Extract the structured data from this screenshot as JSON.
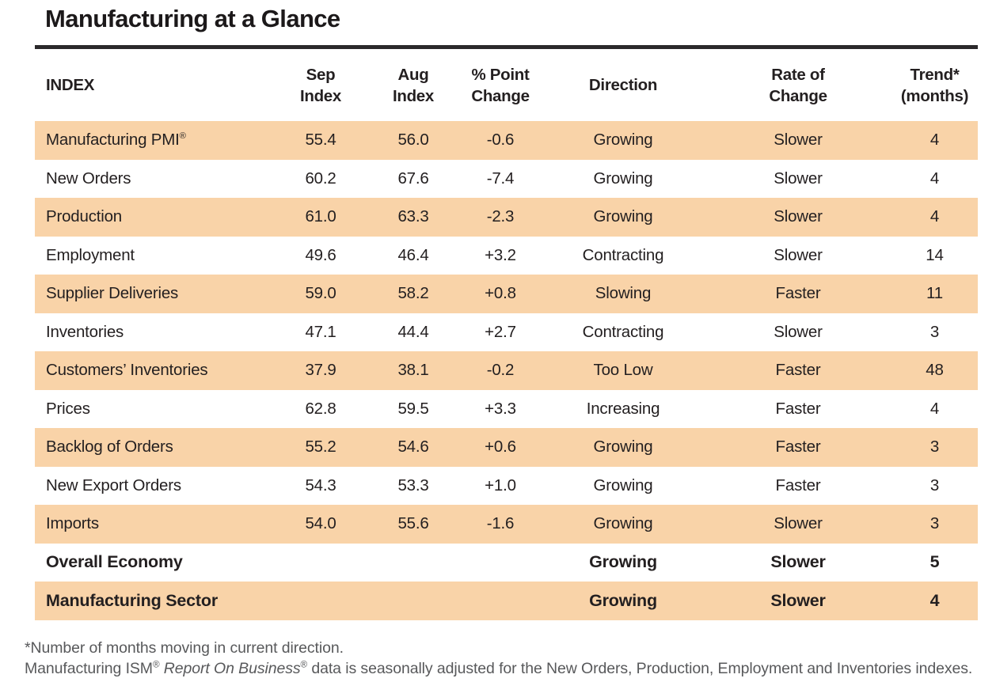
{
  "colors": {
    "highlight_row": "#F9D3A8",
    "text": "#231F20",
    "footnote_text": "#58595B",
    "title_rule": "#2B292B"
  },
  "chart_data": {
    "type": "table",
    "title": "Manufacturing at a Glance",
    "columns": [
      "INDEX",
      "Sep Index",
      "Aug Index",
      "% Point Change",
      "Direction",
      "Rate of Change",
      "Trend* (months)"
    ],
    "header_lines": [
      [
        "INDEX"
      ],
      [
        "Sep",
        "Index"
      ],
      [
        "Aug",
        "Index"
      ],
      [
        "% Point",
        "Change"
      ],
      [
        "Direction"
      ],
      [
        "Rate of",
        "Change"
      ],
      [
        "Trend*",
        "(months)"
      ]
    ],
    "rows": [
      {
        "name": "Manufacturing PMI",
        "name_sup": "®",
        "sep": "55.4",
        "aug": "56.0",
        "change": "-0.6",
        "direction": "Growing",
        "rate": "Slower",
        "trend": "4",
        "highlight": true,
        "bold": false
      },
      {
        "name": "New Orders",
        "sep": "60.2",
        "aug": "67.6",
        "change": "-7.4",
        "direction": "Growing",
        "rate": "Slower",
        "trend": "4",
        "highlight": false,
        "bold": false
      },
      {
        "name": "Production",
        "sep": "61.0",
        "aug": "63.3",
        "change": "-2.3",
        "direction": "Growing",
        "rate": "Slower",
        "trend": "4",
        "highlight": true,
        "bold": false
      },
      {
        "name": "Employment",
        "sep": "49.6",
        "aug": "46.4",
        "change": "+3.2",
        "direction": "Contracting",
        "rate": "Slower",
        "trend": "14",
        "highlight": false,
        "bold": false
      },
      {
        "name": "Supplier Deliveries",
        "sep": "59.0",
        "aug": "58.2",
        "change": "+0.8",
        "direction": "Slowing",
        "rate": "Faster",
        "trend": "11",
        "highlight": true,
        "bold": false
      },
      {
        "name": "Inventories",
        "sep": "47.1",
        "aug": "44.4",
        "change": "+2.7",
        "direction": "Contracting",
        "rate": "Slower",
        "trend": "3",
        "highlight": false,
        "bold": false
      },
      {
        "name": "Customers’ Inventories",
        "sep": "37.9",
        "aug": "38.1",
        "change": "-0.2",
        "direction": "Too Low",
        "rate": "Faster",
        "trend": "48",
        "highlight": true,
        "bold": false
      },
      {
        "name": "Prices",
        "sep": "62.8",
        "aug": "59.5",
        "change": "+3.3",
        "direction": "Increasing",
        "rate": "Faster",
        "trend": "4",
        "highlight": false,
        "bold": false
      },
      {
        "name": "Backlog of Orders",
        "sep": "55.2",
        "aug": "54.6",
        "change": "+0.6",
        "direction": "Growing",
        "rate": "Faster",
        "trend": "3",
        "highlight": true,
        "bold": false
      },
      {
        "name": "New Export Orders",
        "sep": "54.3",
        "aug": "53.3",
        "change": "+1.0",
        "direction": "Growing",
        "rate": "Faster",
        "trend": "3",
        "highlight": false,
        "bold": false
      },
      {
        "name": "Imports",
        "sep": "54.0",
        "aug": "55.6",
        "change": "-1.6",
        "direction": "Growing",
        "rate": "Slower",
        "trend": "3",
        "highlight": true,
        "bold": false
      },
      {
        "name": "Overall Economy",
        "sep": "",
        "aug": "",
        "change": "",
        "direction": "Growing",
        "rate": "Slower",
        "trend": "5",
        "highlight": false,
        "bold": true
      },
      {
        "name": "Manufacturing Sector",
        "sep": "",
        "aug": "",
        "change": "",
        "direction": "Growing",
        "rate": "Slower",
        "trend": "4",
        "highlight": true,
        "bold": true
      }
    ],
    "footnotes": [
      "*Number of months moving in current direction.",
      "Manufacturing ISM® Report On Business® data is seasonally adjusted for the New Orders, Production, Employment and Inventories indexes."
    ]
  },
  "footnote2_parts": {
    "pre": "Manufacturing ISM",
    "sup1": "®",
    "italic": " Report On Business",
    "sup2": "®",
    "post": " data is seasonally adjusted for the New Orders, Production, Employment and Inventories indexes."
  }
}
